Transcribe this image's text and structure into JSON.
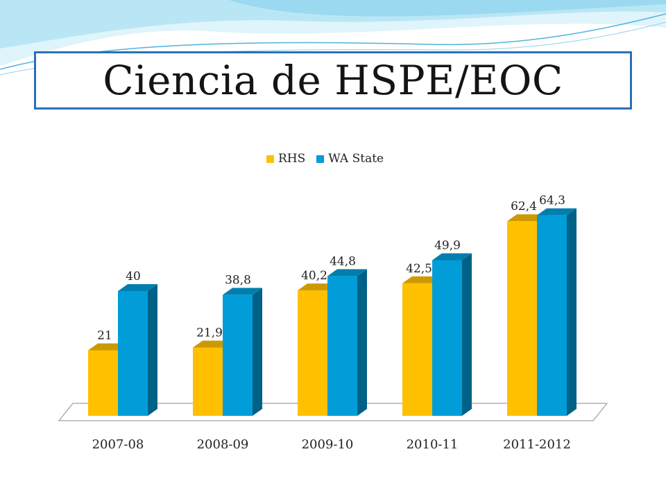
{
  "slide": {
    "title": "Ciencia de HSPE/EOC"
  },
  "chart_data": {
    "type": "bar",
    "categories": [
      "2007-08",
      "2008-09",
      "2009-10",
      "2010-11",
      "2011-2012"
    ],
    "series": [
      {
        "name": "RHS",
        "color": "#FFC000",
        "values": [
          21,
          21.9,
          40.2,
          42.5,
          62.4
        ],
        "labels": [
          "21",
          "21,9",
          "40,2",
          "42,5",
          "62,4"
        ]
      },
      {
        "name": "WA State",
        "color": "#009DD9",
        "values": [
          40,
          38.8,
          44.8,
          49.9,
          64.3
        ],
        "labels": [
          "40",
          "38,8",
          "44,8",
          "49,9",
          "64,3"
        ]
      }
    ],
    "ylim": [
      0,
      70
    ],
    "grid": false,
    "legend_position": "top",
    "style": "3d-clustered-column"
  }
}
